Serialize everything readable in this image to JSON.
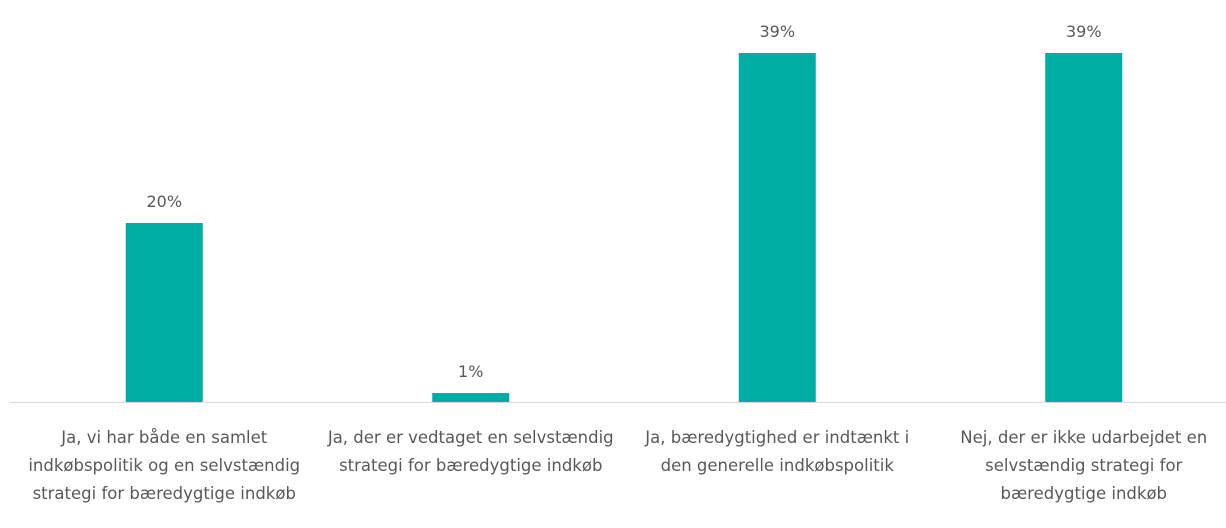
{
  "chart_data": {
    "type": "bar",
    "categories": [
      "Ja, vi har både en samlet indkøbspolitik og en selvstændig strategi for bæredygtige indkøb",
      "Ja, der er vedtaget en selvstændig strategi for bæredygtige indkøb",
      "Ja, bæredygtighed er indtænkt i den generelle indkøbspolitik",
      "Nej, der er ikke udarbejdet en selvstændig strategi for bæredygtige indkøb"
    ],
    "values": [
      20,
      1,
      39,
      39
    ],
    "value_labels": [
      "20%",
      "1%",
      "39%",
      "39%"
    ],
    "color": "#00ada5"
  }
}
